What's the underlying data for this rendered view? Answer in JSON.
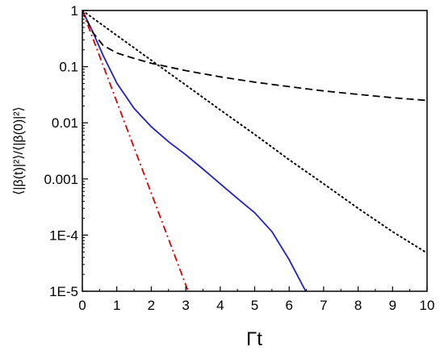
{
  "chart_data": {
    "type": "line",
    "xlabel": "Γt",
    "ylabel": "⟨|β(t)|²⟩/⟨|β(0)|²⟩",
    "xlim": [
      0,
      10
    ],
    "ylim": [
      1e-05,
      1
    ],
    "yscale": "log",
    "grid": false,
    "legend": "none",
    "x_ticks": [
      0,
      1,
      2,
      3,
      4,
      5,
      6,
      7,
      8,
      9,
      10
    ],
    "x_tick_labels": [
      "0",
      "1",
      "2",
      "3",
      "4",
      "5",
      "6",
      "7",
      "8",
      "9",
      "10"
    ],
    "y_ticks": [
      1,
      0.1,
      0.01,
      0.001,
      0.0001,
      1e-05
    ],
    "y_tick_labels": [
      "1",
      "0.1",
      "0.01",
      "0.001",
      "1E-4",
      "1E-5"
    ],
    "series": [
      {
        "style": "solid",
        "color": "#1f1fd0",
        "x": [
          0,
          0.3,
          0.6,
          1.0,
          1.5,
          2.0,
          2.5,
          3.0,
          3.5,
          4.0,
          4.5,
          5.0,
          5.5,
          6.0,
          6.48
        ],
        "y": [
          1,
          0.42,
          0.16,
          0.051,
          0.018,
          0.0085,
          0.0046,
          0.0027,
          0.0015,
          0.00082,
          0.00045,
          0.00025,
          0.000115,
          3.65e-05,
          1e-05
        ]
      },
      {
        "style": "dashed",
        "color": "#000000",
        "x": [
          0,
          0.3,
          0.6,
          1.0,
          1.5,
          2.0,
          3.0,
          4.0,
          5.0,
          6.0,
          7.0,
          8.0,
          9.0,
          10.0
        ],
        "y": [
          1,
          0.41,
          0.24,
          0.175,
          0.14,
          0.115,
          0.085,
          0.066,
          0.053,
          0.044,
          0.037,
          0.032,
          0.028,
          0.025
        ]
      },
      {
        "style": "dotted",
        "color": "#000000",
        "x": [
          0,
          0.5,
          1.0,
          2.0,
          3.0,
          4.0,
          5.0,
          6.0,
          7.0,
          8.0,
          9.0,
          10.0
        ],
        "y": [
          1,
          0.6,
          0.36,
          0.13,
          0.047,
          0.017,
          0.0062,
          0.0022,
          0.00082,
          0.0003,
          0.000115,
          4.8e-05
        ]
      },
      {
        "style": "dashdot",
        "color": "#dd0000",
        "x": [
          0,
          1.0,
          2.0,
          3.07
        ],
        "y": [
          1,
          0.0236,
          0.000556,
          1e-05
        ]
      }
    ]
  }
}
